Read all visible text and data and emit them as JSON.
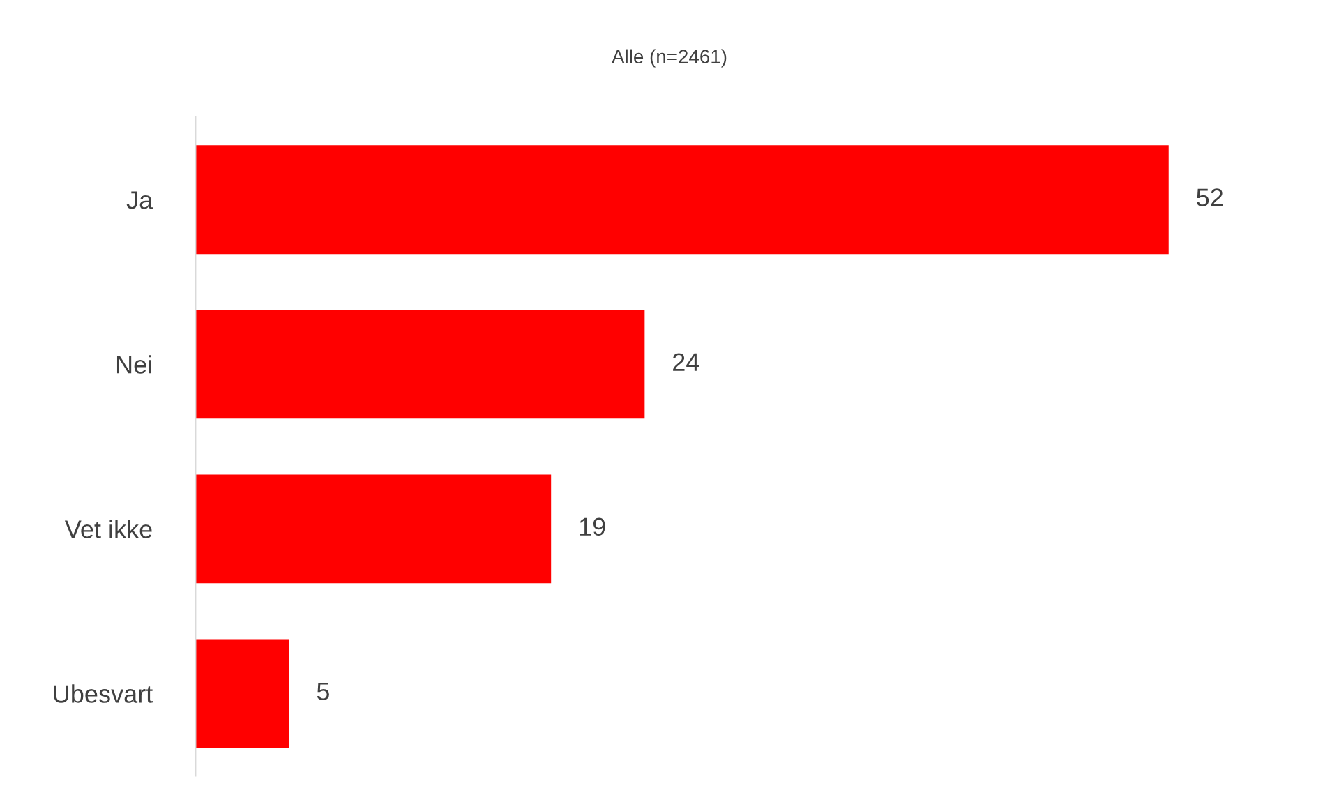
{
  "chart_data": {
    "type": "bar",
    "orientation": "horizontal",
    "title": "Alle (n=2461)",
    "categories": [
      "Ja",
      "Nei",
      "Vet ikke",
      "Ubesvart"
    ],
    "values": [
      52,
      24,
      19,
      5
    ],
    "color": "#ff0000",
    "data_labels": true,
    "grid": false,
    "legend": false
  }
}
